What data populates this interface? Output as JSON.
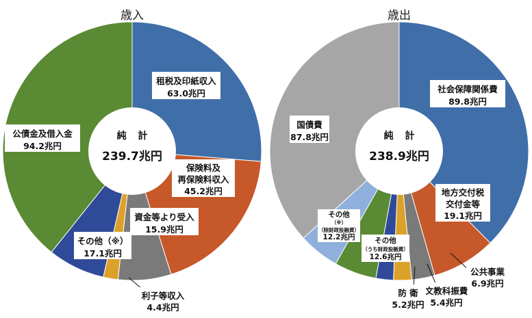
{
  "chart_data": [
    {
      "type": "pie",
      "variant": "donut",
      "title": "歳入",
      "center": {
        "line1": "純 計",
        "line2": "239.7兆円"
      },
      "slices": [
        {
          "name": "租税及印紙収入",
          "value": 63.0,
          "label": [
            "租税及印紙収入",
            "63.0兆円"
          ],
          "color": "#3f6ea9"
        },
        {
          "name": "保険料及再保険料収入",
          "value": 45.2,
          "label": [
            "保険料及",
            "再保険料収入",
            "45.2兆円"
          ],
          "color": "#c6582a"
        },
        {
          "name": "資金等より受入",
          "value": 15.9,
          "label": [
            "資金等より受入",
            "15.9兆円"
          ],
          "color": "#7a7a7a"
        },
        {
          "name": "利子等収入",
          "value": 4.4,
          "label": [
            "利子等収入",
            "4.4兆円"
          ],
          "color": "#dca12a"
        },
        {
          "name": "その他(※)",
          "value": 17.1,
          "label": [
            "その他（※）",
            "17.1兆円"
          ],
          "color": "#2f4a98"
        },
        {
          "name": "公債金及借入金",
          "value": 94.2,
          "label": [
            "公債金及借入金",
            "94.2兆円"
          ],
          "color": "#5a8a34"
        }
      ]
    },
    {
      "type": "pie",
      "variant": "donut",
      "title": "歳出",
      "center": {
        "line1": "純 計",
        "line2": "238.9兆円"
      },
      "slices": [
        {
          "name": "社会保障関係費",
          "value": 89.8,
          "label": [
            "社会保障関係費",
            "89.8兆円"
          ],
          "color": "#3f6ea9"
        },
        {
          "name": "地方交付税交付金等",
          "value": 19.1,
          "label": [
            "地方交付税",
            "交付金等",
            "19.1兆円"
          ],
          "color": "#c6582a"
        },
        {
          "name": "公共事業",
          "value": 6.9,
          "label": [
            "公共事業",
            "6.9兆円"
          ],
          "color": "#7a7a7a"
        },
        {
          "name": "文教科振費",
          "value": 5.4,
          "label": [
            "文教科振費",
            "5.4兆円"
          ],
          "color": "#dca12a"
        },
        {
          "name": "防衛",
          "value": 5.2,
          "label": [
            "防 衛",
            "5.2兆円"
          ],
          "color": "#2f4a98"
        },
        {
          "name": "その他(うち財政投融資)",
          "value": 12.6,
          "label": [
            "その他",
            "（うち財政投融資）",
            "12.6兆円"
          ],
          "color": "#5a8a34"
        },
        {
          "name": "その他(※)(除財政投融資)",
          "value": 12.2,
          "label": [
            "その他",
            "（※）",
            "（除財政投融資）",
            "12.2兆円"
          ],
          "color": "#8fb0dc"
        },
        {
          "name": "国債費",
          "value": 87.8,
          "label": [
            "国債費",
            "87.8兆円"
          ],
          "color": "#a6a6a6"
        }
      ]
    }
  ]
}
